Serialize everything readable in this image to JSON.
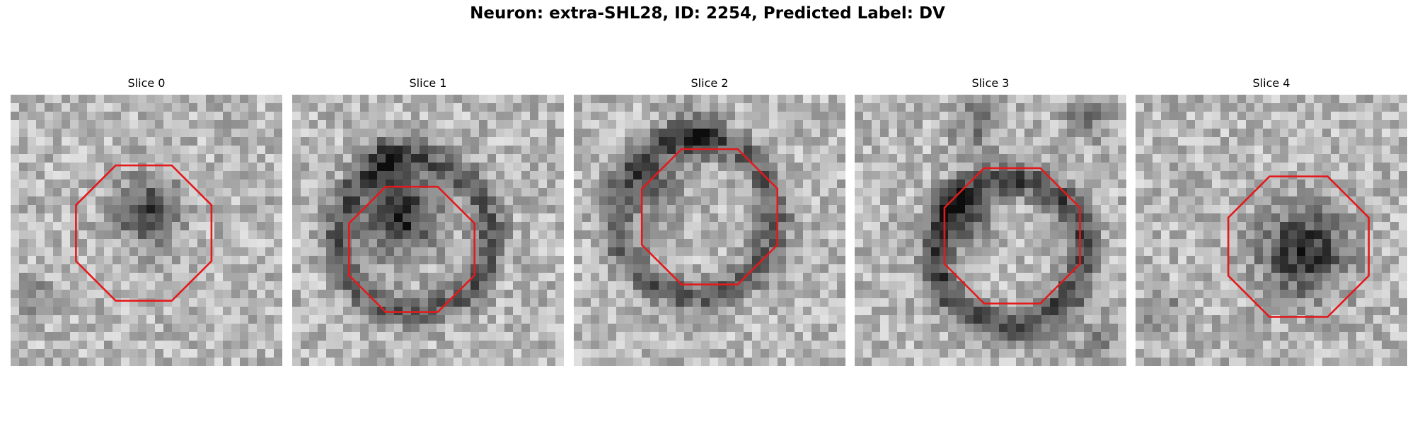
{
  "figure": {
    "title": "Neuron: extra-SHL28, ID: 2254, Predicted Label: DV"
  },
  "panels": [
    {
      "title": "Slice 0"
    },
    {
      "title": "Slice 1"
    },
    {
      "title": "Slice 2"
    },
    {
      "title": "Slice 3"
    },
    {
      "title": "Slice 4"
    }
  ],
  "colors": {
    "outline": "#e31a1c",
    "background": "#ffffff"
  }
}
